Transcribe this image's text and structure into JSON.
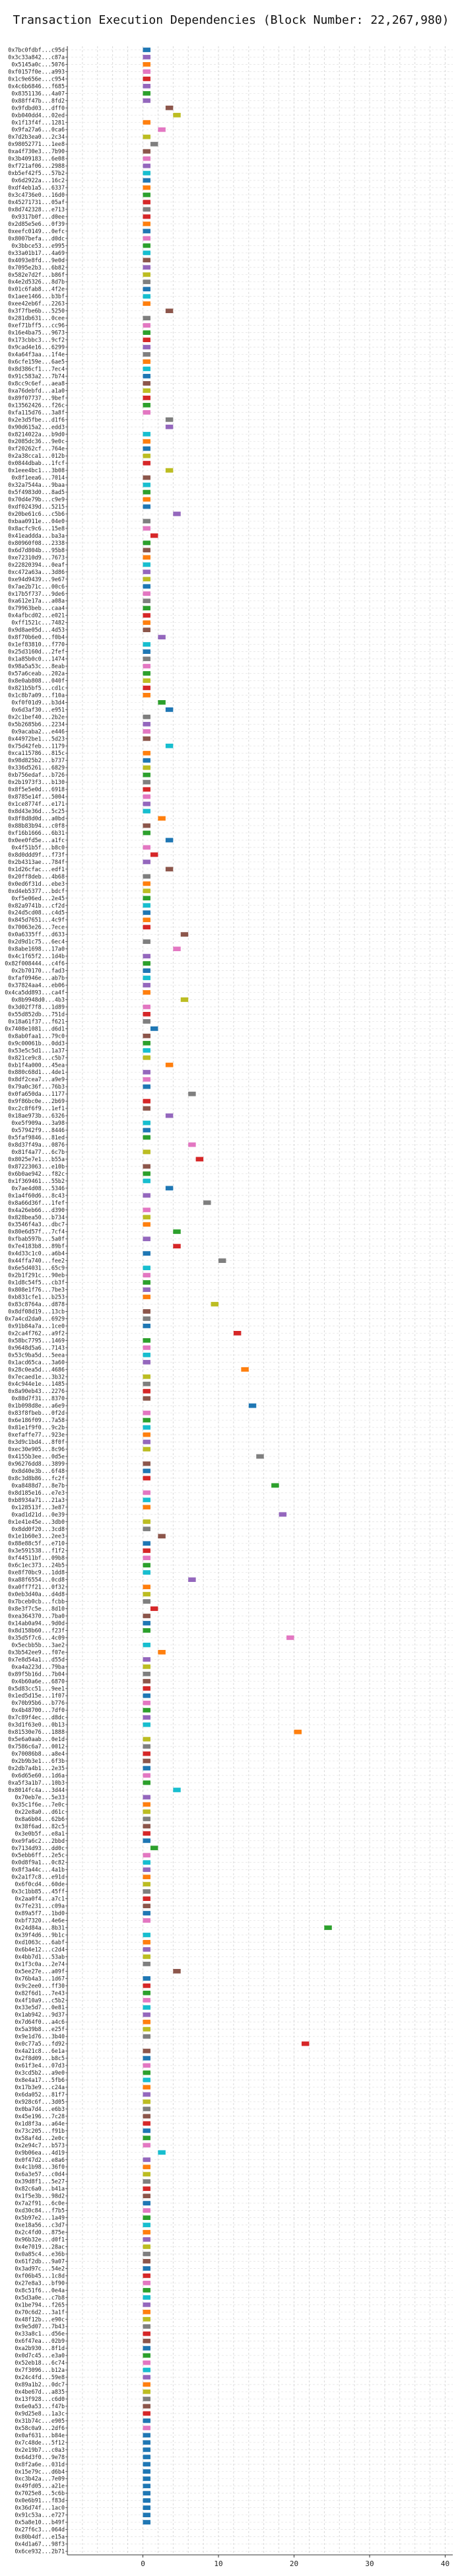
{
  "chart_data": {
    "type": "bar",
    "orientation": "horizontal",
    "title": "Transaction Execution Dependencies (Block Number: 22,267,980)",
    "xlim": [
      -10,
      41
    ],
    "x_ticks": [
      0,
      10,
      20,
      30,
      40
    ],
    "grid": true,
    "bar_span": 1,
    "colors": [
      "#1f77b4",
      "#ff7f0e",
      "#2ca02c",
      "#d62728",
      "#9467bd",
      "#8c564b",
      "#e377c2",
      "#7f7f7f",
      "#bcbd22",
      "#17becf"
    ],
    "categories": [
      "0x7bc0fdbf...c95d",
      "0x3c33a842...c87a",
      "0x5145a0c...5076",
      "0xf0157f0e...a993",
      "0x1c9e656e...c954",
      "0x4c6b6846...f685",
      "0x8351136...4a07",
      "0x88ff47b...8fd2",
      "0x9fdbd03...dff0",
      "0xb040dd4...02ed",
      "0x1f13f4f...1281",
      "0x9fa27a6...0ca6",
      "0x7d2b3ea0...2c34",
      "0x98052771...1ee8",
      "0xa4f730e3...7b90",
      "0x3b409183...6e08",
      "0xf721af06...2988",
      "0xb5ef42f5...57b2",
      "0x6d2922a...16c2",
      "0xdf4eb1a5...6337",
      "0x3c4736e0...16d0",
      "0x45271731...05af",
      "0x8d742328...e713",
      "0x9317b0f...d0ee",
      "0x2d85e5e6...0f39",
      "0xeefc0149...0efc",
      "0x8007befa...d0dc",
      "0x3bbce53...e995",
      "0x33a01b17...4a69",
      "0x4093e8fd...9e0d",
      "0x7095e2b3...6b82",
      "0x582e7d2f...b86f",
      "0x4e2d5326...8d7b",
      "0x01c6fab8...4f2e",
      "0x1aee1466...b3bf",
      "0xee42eb6f...2263",
      "0x3f7fbe6b...5250",
      "0x281db631...0cee",
      "0xef71bff5...cc96",
      "0x16e4ba75...9673",
      "0x173cbbc3...9cf2",
      "0x9cad4e16...6299",
      "0x4a64f3aa...1f4e",
      "0x6cfe159e...6ae5",
      "0x8d386cf1...7ec4",
      "0x91c583a2...7b74",
      "0x8cc9c6ef...aea8",
      "0xa76debfd...a1a0",
      "0x89f07737...9bef",
      "0x13562426...f26c",
      "0xfa115d76...3a8f",
      "0x2e3d5fbe...d1f6",
      "0x90d615a2...edd3",
      "0x8214022a...b9d0",
      "0x2085dc36...9e0c",
      "0xf20262cf...764e",
      "0x2a38cca1...012b",
      "0x0844dbab...1fcf",
      "0x1eee4bc1...3b08",
      "0x8f1eea6...7014",
      "0x32a7544a...9baa",
      "0x5f4983d0...8ad5",
      "0x70d4e79b...c9e9",
      "0xdf02439d...5215",
      "0x20be61c6...c5b6",
      "0xbaa0911e...04e0",
      "0x8acfc9c6...15e8",
      "0x41eaddda...ba3a",
      "0x80960f08...2338",
      "0x6d7d804b...95b8",
      "0xe72310d9...7673",
      "0x22820394...0eaf",
      "0xc472a63a...3d86",
      "0xe94d9439...9e67",
      "0x7ae2b71c...00c6",
      "0x17b5f737...9de6",
      "0xa612e17a...a08a",
      "0x79963beb...caa4",
      "0x4afbcd02...e021",
      "0xff1521c...7482",
      "0x9d8ae05d...4d53",
      "0x8f70b6e0...f0b4",
      "0x1ef83810...f770",
      "0x25d3160d...2fef",
      "0x1a85b0c0...1474",
      "0x98a5a53c...8eab",
      "0x57a6ceab...202a",
      "0x8e0ab808...040f",
      "0x821b5bf5...cd1c",
      "0x1c8b7a09...f10a",
      "0xf0f01d9...b3d4",
      "0x6d3af30...e951",
      "0x2c1bef40...2b2e",
      "0x5b2685b6...2234",
      "0x9acaba2...e446",
      "0x44972be1...5d23",
      "0x75d42feb...1179",
      "0xca115786...815c",
      "0x98d825b2...b737",
      "0x336d5261...6829",
      "0xb756edaf...b726",
      "0x2b1973f3...b130",
      "0x8f5e5e0d...6918",
      "0x8785e14f...5004",
      "0x1ce8774f...e171",
      "0x8d43e36d...5c25",
      "0x8f8d8d0d...a0bd",
      "0x88b83b94...c0f8",
      "0xf16b1666...6b31",
      "0x0ee0fd5e...a1fc",
      "0x4f51b5f...b8c0",
      "0x8d0ddd9f...f73f",
      "0x2b4313ae...784f",
      "0x1d26cfac...edf1",
      "0x20ff8deb...4b68",
      "0x0ed6f31d...ebe3",
      "0xd4eb5377...bdcf",
      "0xf5e06ed...2e45",
      "0x82a9741b...cf2d",
      "0x24d5cd08...c4d5",
      "0x845d7651...4c9f",
      "0x70063e26...7ece",
      "0x0a6335ff...d633",
      "0x2d9d1c75...6ec4",
      "0x8abe1698...17a0",
      "0x4c1f65f2...1d4b",
      "0x82f008444...c4f6",
      "0x2b70170...fad3",
      "0xfaf0946e...ab7b",
      "0x37824aa4...eb06",
      "0x4ca5dd893...ca4f",
      "0x8b9948d0...4b3",
      "0x3d02f7f8...1d89",
      "0x55d852db...751d",
      "0x18a61f37...f621",
      "0x7408e1081...d6d1",
      "0x8ab0faa1...79c0",
      "0x9c00061b...0dd3",
      "0x53e5c5d1...1a37",
      "0x821ce9c8...c5b7",
      "0xb1f4a000...45ea",
      "0x880c68d1...4de1",
      "0x8df2cea7...a9e9",
      "0x79a0c36f...76b3",
      "0x0fa650da...1177",
      "0x9f86bc0e...2b69",
      "0xc2c8f6f9...1ef1",
      "0x18ae973b...6326",
      "0xe5f909a...3a98",
      "0x57942f9...8446",
      "0x5faf9846...81ed",
      "0x8d37f49a...0876",
      "0x81f4a77...6c7b",
      "0x8025e7e1...b55a",
      "0x87223063...e10b",
      "0x6b0ae942...f82c",
      "0x1f369461...55b2",
      "0x7ae4d08...5346",
      "0x1a4f60d6...8c43",
      "0x8a66d36f...1fef",
      "0x4a26eb66...d390",
      "0x828bea50...b734",
      "0x3546f4a3...dbc7",
      "0x80e6d57f...7cf4",
      "0xfbab597b...5a0f",
      "0x7e4183b8...89bf",
      "0x4d33c1c0...a6b4",
      "0x44ffa740...fee2",
      "0x6e5d4031...65c9",
      "0x2b1f291c...90eb",
      "0x1d8c54f5...cb3f",
      "0x808e1f76...7be3",
      "0xb831cfe1...b253",
      "0x83c8764a...d878",
      "0x8df08d19...13cb",
      "0x7a4cd2da0...6929",
      "0x91b84a7a...1ce0",
      "0x2ca4f762...a9f2",
      "0x58bc7795...1469",
      "0x9648d5a6...7143",
      "0x53c9ba5d...5eea",
      "0x1acd65ca...3a60",
      "0x28c0ea5d...4686",
      "0x7ecaed1e...3b32",
      "0x4c944e1e...1485",
      "0x8a90eb43...2276",
      "0x88d7f31...8370",
      "0x1b098d8e...a6e9",
      "0x83f8fbeb...0f2d",
      "0x6e186f09...7a58",
      "0x81e1f9f0...9c2b",
      "0xefaffe77...923e",
      "0x3d9c1bd4...8f0f",
      "0xec30e905...8c96",
      "0x4155b3ee...0d5e",
      "0x96276dd8...3899",
      "0x8d40e3b...6f48",
      "0x8c3d8b86...fc2f",
      "0xa8488d7...8e7b",
      "0x8d185e16...e7e3",
      "0xb8934a71...21a3",
      "0x128513f...3e87",
      "0xad1d21d...0e39",
      "0x1e41e45e...3db0",
      "0x8dd0f20...3cd8",
      "0x1e1b60e3...2ee3",
      "0x88e88c5f...e710",
      "0x3e591538...f1f2",
      "0xf44511bf...09b8",
      "0x6c1ec373...24b5",
      "0xe8f70bc9...1dd8",
      "0xa88f6554...0cd8",
      "0xa0ff7f21...0f32",
      "0x0eb3d40a...d4d8",
      "0x7bceb0cb...fcbb",
      "0x8e3f7c5e...8d10",
      "0xea364370...7ba0",
      "0x14ab0a94...9d0d",
      "0x8d158b60...f23f",
      "0x35d5f7c6...4c09",
      "0x5ecbb5b...3ae2",
      "0x3b542ee9...f07e",
      "0x7e8d54a1...d55d",
      "0xa4a223d...79ba",
      "0x89f5b16d...7b04",
      "0x4b60a6e...6870",
      "0x5d83cc51...9ee1",
      "0x1ed5d15e...1f07",
      "0x70b95b6...b776",
      "0x4b48700...7df0",
      "0x7c89f4ec...d8dc",
      "0x3d1f63e0...0b13",
      "0x81530e76...1888",
      "0x5e6a0aab...0e1d",
      "0x7586c6a7...0012",
      "0x70086b8...a8e4",
      "0x2b9b3e1...6f3b",
      "0x2db7a4b1...2e35",
      "0x6d65e60...1d6a",
      "0xa5f3a1b7...10b3",
      "0x8014fc4a...3d44",
      "0x70eb7e...5e33",
      "0x35c1f6e...7e0c",
      "0x22e8a0...d61c",
      "0x8a6b04...62b6",
      "0x38f6ad...82c5",
      "0x3e0b5f...e8a1",
      "0xe9fa6c2...2bbd",
      "0x7134d93...dd0c",
      "0x5ebb6ff...2e5c",
      "0x0d8f9a1...0c82",
      "0x8f3a44c...4a1b",
      "0x2a1f7c8...e91d",
      "0x6f0cd4...60de",
      "0x3c1bb85...45ff",
      "0x2aa0f4...a7c1",
      "0x7fe231...c09a",
      "0x89a5f7...1bd0",
      "0xbf7320...4e6e",
      "0x24d84a...8b31",
      "0x39f4d6...9b1c",
      "0xd1063c...6abf",
      "0x6b4e12...c2d4",
      "0x4bb7d1...53ab",
      "0x1f3c0a...2e74",
      "0x5ee27e...a09f",
      "0x76b4a3...1d67",
      "0x9c2ee0...ff30",
      "0x82f6d1...7e43",
      "0x4f10a9...c5b2",
      "0x33e5d7...0e81",
      "0x1ab942...9d37",
      "0x7d64f0...a4c6",
      "0x5a39b8...e25f",
      "0x9e1d76...3b40",
      "0x0c77a5...fd92",
      "0x4a21c8...6e1a",
      "0x2f8d09...b8c5",
      "0x61f3e4...07d3",
      "0x3cd5b2...a9e0",
      "0x8e4a17...5fb6",
      "0x17b3e9...c24a",
      "0x6da052...81f7",
      "0x928c6f...3d05",
      "0x0ba7d4...e6b3",
      "0x45e196...7c28",
      "0x1d8f3a...a64e",
      "0x73c205...f91b",
      "0x58af4d...2e0c",
      "0x2e94c7...b573",
      "0x9b06ea...4d19",
      "0x0f47d2...e8a6",
      "0x4c1b98...36f0",
      "0x6a3e57...c0d4",
      "0x39d8f1...5e27",
      "0x82c6a0...b41a",
      "0x1f5e3b...98d2",
      "0x7a2f91...6c0e",
      "0xd30c84...f7b5",
      "0x5b97e2...1a49",
      "0xe18a56...c3d7",
      "0x2c4fd0...875e",
      "0x96b32e...d0f1",
      "0x4e7019...28ac",
      "0x0a85c4...e36b",
      "0x61f2db...9a07",
      "0x3ad97c...54e2",
      "0xf06b45...1c8d",
      "0x27e8a3...bf90",
      "0x8c51f6...0e4a",
      "0x5d3a0e...c7b8",
      "0x1be794...f265",
      "0x70c6d2...3a1f",
      "0x48f12b...e90c",
      "0x9e5d07...7b43",
      "0x33a8c1...d56e",
      "0x6f47ea...02b9",
      "0xa2b930...8f1d",
      "0x0d7c45...e3a0",
      "0x52eb18...6c74",
      "0x7f3096...b12a",
      "0x24c4fd...59e8",
      "0x89a1b2...0dc7",
      "0x4be67d...a835",
      "0x13f928...c6d0",
      "0x6e0a53...f47b",
      "0x9d25e8...1a3c",
      "0x31b74c...e905",
      "0x58c0a9...2df6",
      "0x0af631...b84e",
      "0x7c48de...5f12",
      "0x2e19b7...c0a3",
      "0x64d3f0...9e78",
      "0x8f2a6e...031d",
      "0x15e79c...d6b4",
      "0xc3b42a...7e09",
      "0x49fd05...a21e",
      "0x7025e8...5c6b",
      "0x0e6b91...f83d",
      "0x36d74f...1ac0",
      "0x91c53a...e727",
      "0x5a8e10...b49f",
      "0x27f6c3...064d",
      "0x80b4df...e15a",
      "0x4d1a67...98f3",
      "0x6ce932...2b71"
    ],
    "x": [
      0,
      0,
      0,
      0,
      0,
      0,
      0,
      0,
      3,
      4,
      0,
      2,
      0,
      1,
      0,
      0,
      0,
      0,
      0,
      0,
      0,
      0,
      0,
      0,
      0,
      0,
      0,
      0,
      0,
      0,
      0,
      0,
      0,
      0,
      0,
      0,
      3,
      0,
      0,
      0,
      0,
      0,
      0,
      0,
      0,
      0,
      0,
      0,
      0,
      0,
      0,
      3,
      3,
      0,
      0,
      0,
      0,
      0,
      3,
      0,
      0,
      0,
      0,
      0,
      4,
      0,
      0,
      1,
      0,
      0,
      0,
      0,
      0,
      0,
      0,
      0,
      0,
      0,
      0,
      0,
      0,
      2,
      0,
      0,
      0,
      0,
      0,
      0,
      0,
      0,
      2,
      3,
      0,
      0,
      0,
      0,
      3,
      0,
      0,
      0,
      0,
      0,
      0,
      0,
      0,
      0,
      2,
      0,
      0,
      3,
      0,
      1,
      0,
      3,
      0,
      0,
      0,
      0,
      0,
      0,
      0,
      0,
      5,
      0,
      4,
      0,
      0,
      0,
      0,
      0,
      0,
      5,
      0,
      0,
      0,
      1,
      0,
      0,
      0,
      0,
      3,
      0,
      0,
      0,
      6,
      0,
      0,
      3,
      0,
      0,
      0,
      6,
      0,
      7,
      0,
      0,
      0,
      3,
      0,
      8,
      0,
      0,
      0,
      4,
      0,
      4,
      0,
      10,
      0,
      0,
      0,
      0,
      0,
      9,
      0,
      0,
      0,
      12,
      0,
      0,
      0,
      0,
      13,
      0,
      0,
      0,
      0,
      14,
      0,
      0,
      0,
      0,
      0,
      0,
      15,
      0,
      0,
      0,
      17,
      0,
      0,
      0,
      18,
      0,
      0,
      2,
      0,
      0,
      0,
      0,
      0,
      6,
      0,
      0,
      0,
      1,
      0,
      0,
      0,
      19,
      0,
      2,
      0,
      0,
      0,
      0,
      0,
      0,
      0,
      0,
      0,
      0,
      20,
      0,
      0,
      0,
      0,
      0,
      0,
      0,
      4,
      0,
      0,
      0,
      0,
      0,
      0,
      0,
      1,
      0,
      0,
      0,
      0,
      0,
      0,
      0,
      0,
      0,
      0,
      24,
      0,
      0,
      0,
      0,
      0,
      4,
      0,
      0,
      0,
      0,
      0,
      0,
      0,
      0,
      0,
      21,
      0,
      0,
      0,
      0,
      0,
      0,
      0,
      0,
      0,
      0,
      0,
      0,
      0,
      0,
      2,
      0,
      0,
      0,
      0,
      0,
      0,
      0,
      0,
      0,
      0,
      0,
      0,
      0,
      0,
      0,
      0,
      0,
      0,
      0,
      0,
      0,
      0,
      0,
      0,
      0,
      0,
      0,
      0,
      0,
      0,
      0,
      0,
      0,
      0,
      0,
      0,
      0,
      0,
      0,
      0,
      0,
      0,
      0,
      0,
      0,
      0,
      0,
      0,
      0,
      0,
      0
    ],
    "color_index": [
      0,
      4,
      1,
      6,
      3,
      4,
      2,
      4,
      5,
      8,
      1,
      6,
      8,
      7,
      5,
      6,
      4,
      9,
      0,
      1,
      2,
      3,
      7,
      3,
      1,
      0,
      6,
      2,
      9,
      5,
      4,
      8,
      7,
      0,
      9,
      1,
      5,
      7,
      6,
      2,
      3,
      4,
      7,
      1,
      9,
      0,
      5,
      8,
      3,
      2,
      6,
      7,
      4,
      9,
      1,
      0,
      8,
      3,
      8,
      5,
      9,
      2,
      1,
      0,
      4,
      7,
      6,
      3,
      2,
      5,
      1,
      9,
      4,
      8,
      0,
      6,
      7,
      2,
      3,
      1,
      5,
      4,
      9,
      0,
      7,
      6,
      2,
      8,
      3,
      1,
      2,
      0,
      7,
      4,
      6,
      5,
      9,
      1,
      0,
      8,
      2,
      7,
      3,
      6,
      4,
      9,
      1,
      5,
      2,
      0,
      6,
      3,
      4,
      5,
      7,
      1,
      8,
      2,
      9,
      0,
      1,
      3,
      5,
      7,
      6,
      4,
      2,
      0,
      9,
      4,
      1,
      8,
      6,
      3,
      7,
      0,
      5,
      2,
      9,
      8,
      1,
      4,
      6,
      0,
      7,
      3,
      5,
      4,
      9,
      0,
      2,
      6,
      8,
      3,
      5,
      2,
      9,
      0,
      4,
      7,
      6,
      8,
      1,
      2,
      4,
      3,
      0,
      7,
      9,
      6,
      2,
      4,
      1,
      8,
      5,
      7,
      0,
      3,
      2,
      6,
      9,
      4,
      1,
      8,
      7,
      3,
      5,
      0,
      6,
      2,
      9,
      1,
      4,
      8,
      7,
      5,
      0,
      3,
      2,
      6,
      9,
      1,
      4,
      8,
      7,
      5,
      0,
      3,
      6,
      2,
      9,
      4,
      1,
      8,
      7,
      3,
      5,
      0,
      2,
      6,
      9,
      1,
      4,
      8,
      7,
      5,
      3,
      0,
      6,
      2,
      4,
      9,
      1,
      8,
      7,
      3,
      5,
      0,
      6,
      2,
      9,
      4,
      1,
      8,
      7,
      5,
      3,
      0,
      2,
      6,
      9,
      4,
      1,
      8,
      7,
      3,
      5,
      0,
      6,
      2,
      9,
      1,
      4,
      8,
      7,
      5,
      0,
      3,
      2,
      6,
      9,
      4,
      1,
      8,
      7,
      3,
      5,
      0,
      6,
      2,
      9,
      1,
      4,
      8,
      7,
      5,
      3,
      0,
      2,
      6,
      9,
      4,
      1,
      8,
      7,
      3,
      5,
      0,
      6,
      2,
      9,
      1,
      4,
      8,
      7,
      5,
      0,
      3,
      6,
      2,
      9,
      4,
      1,
      8,
      7,
      3,
      5,
      0,
      2,
      6,
      9,
      4,
      1,
      8,
      7,
      5,
      3,
      0,
      6
    ]
  }
}
